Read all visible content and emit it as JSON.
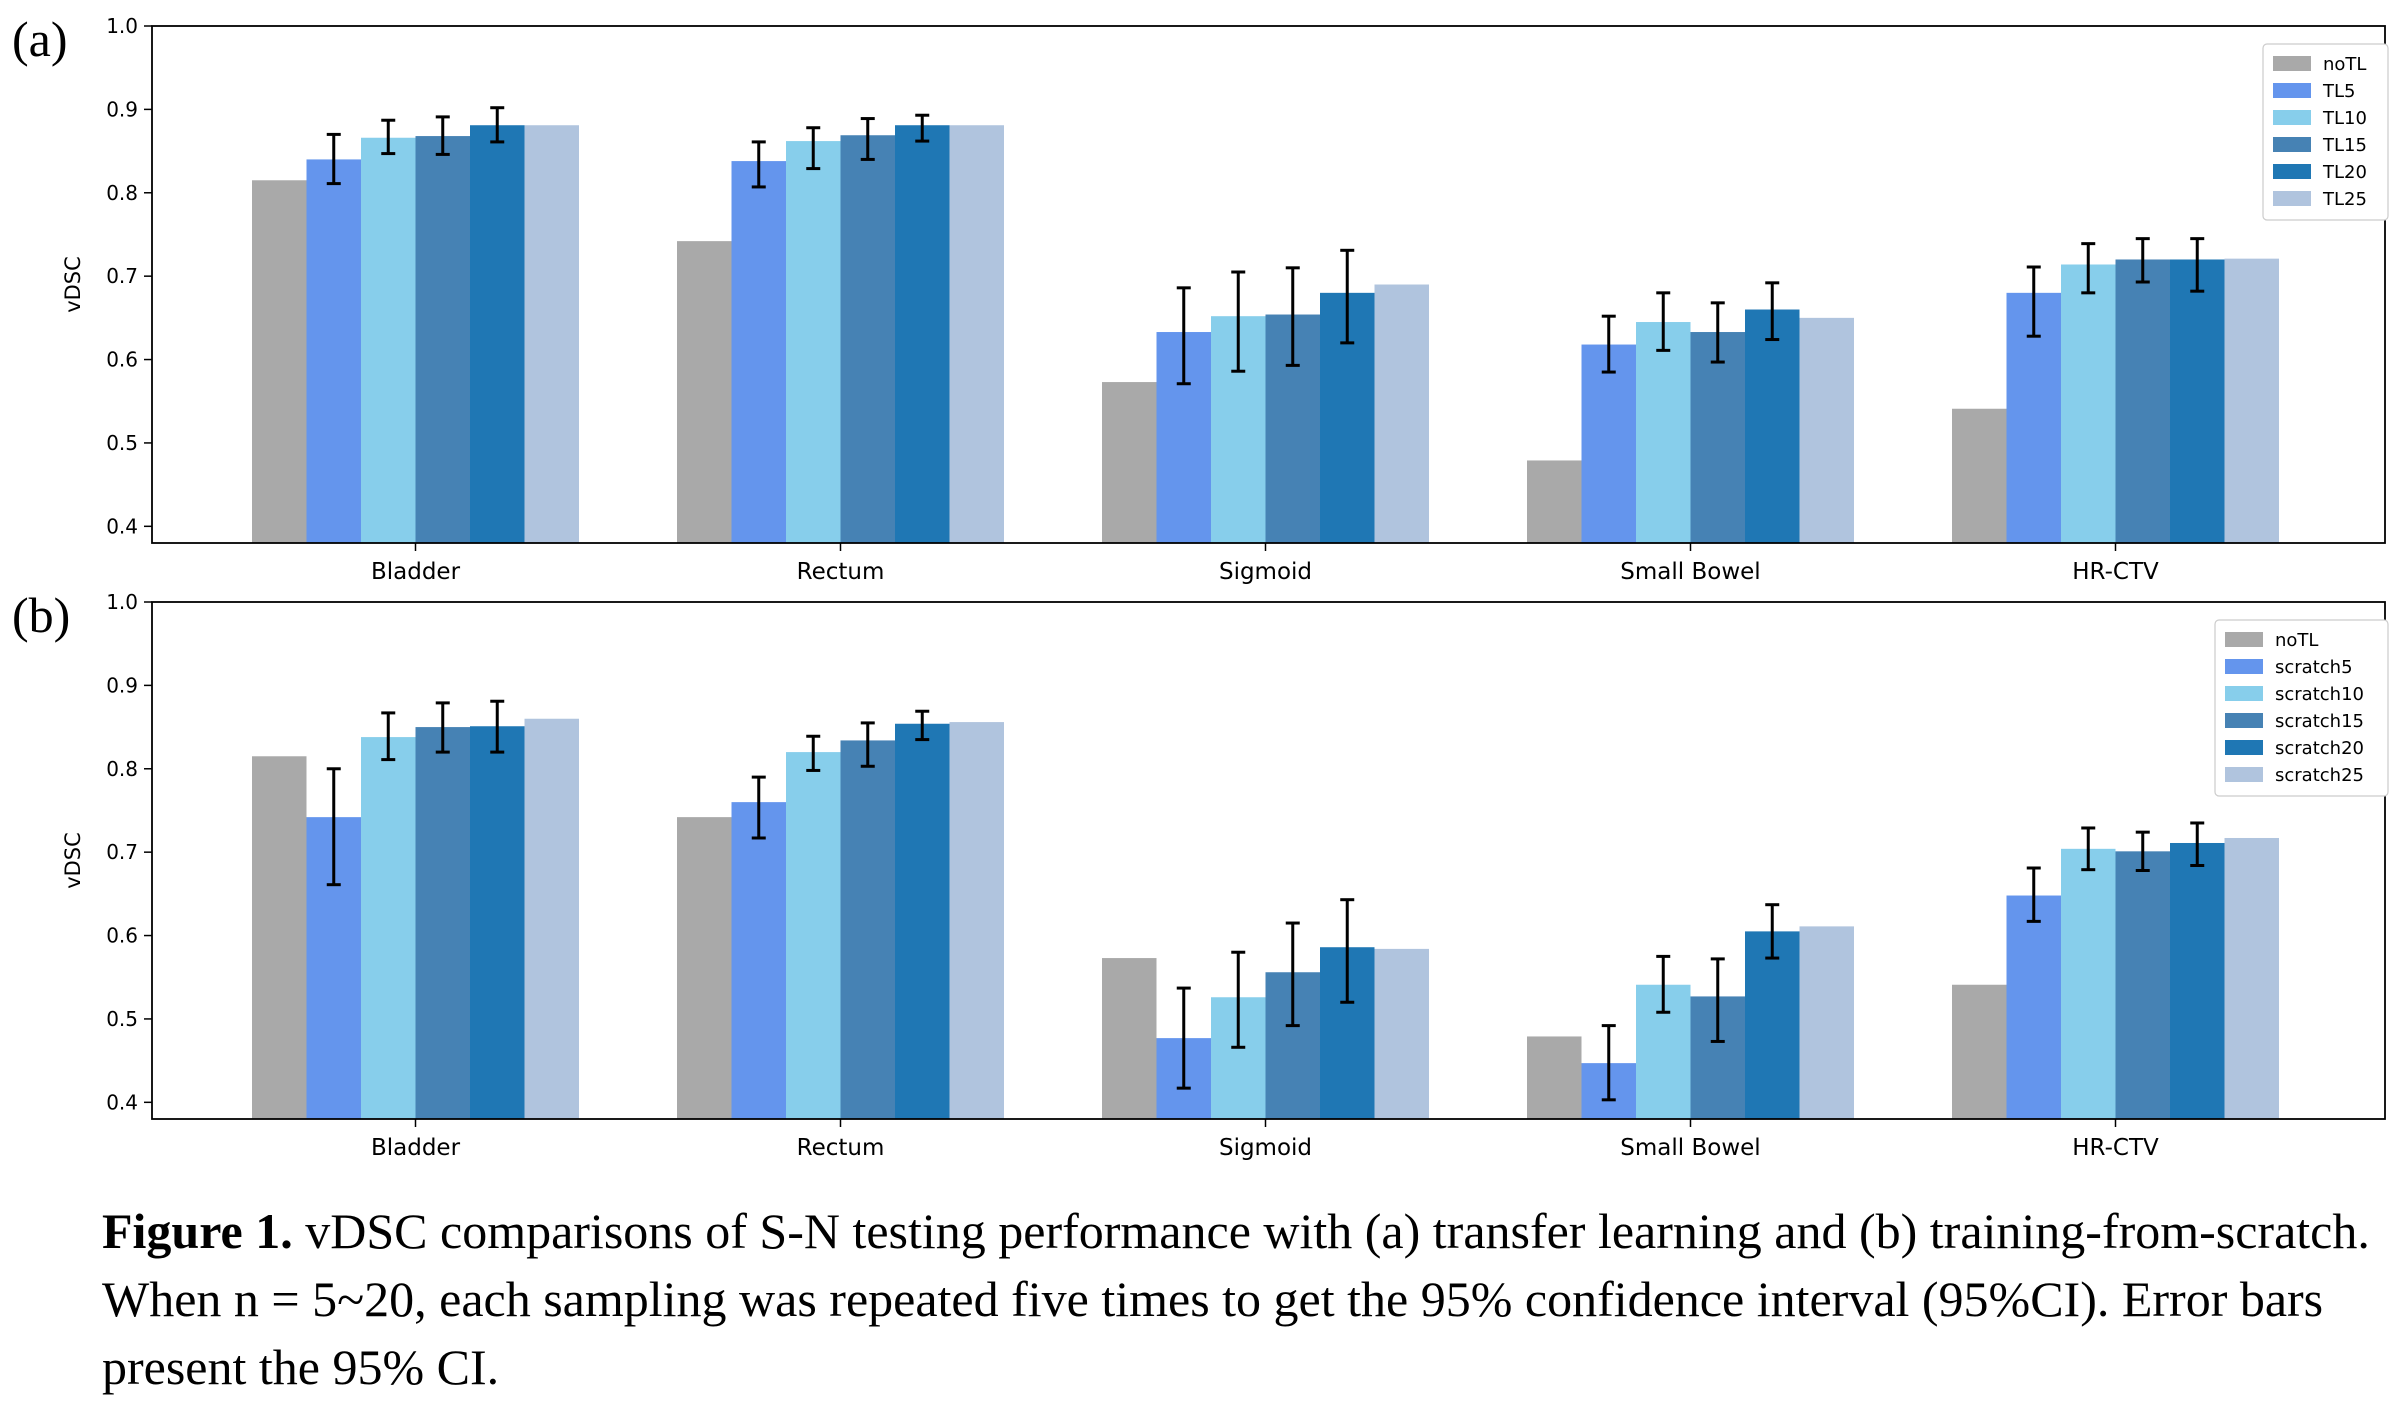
{
  "caption": {
    "label": "Figure 1.",
    "text": "vDSC comparisons of S-N testing performance with (a) transfer learning and (b) training-from-scratch. When n = 5~20, each sampling was repeated five times to get the 95% confidence interval (95%CI). Error bars present the 95% CI."
  },
  "colors": {
    "c0": "#a9a9a9",
    "c1": "#6495ed",
    "c2": "#87ceeb",
    "c3": "#4682b4",
    "c4": "#1f77b4",
    "c5": "#b0c4de"
  },
  "chart_data": [
    {
      "type": "bar",
      "panel_label": "(a)",
      "title": "",
      "xlabel": "",
      "ylabel": "vDSC",
      "ylim": [
        0.38,
        1.0
      ],
      "yticks": [
        "0.4",
        "0.5",
        "0.6",
        "0.7",
        "0.8",
        "0.9",
        "1.0"
      ],
      "categories": [
        "Bladder",
        "Rectum",
        "Sigmoid",
        "Small Bowel",
        "HR-CTV"
      ],
      "legend_position": "top-right",
      "grid": false,
      "series": [
        {
          "name": "noTL",
          "values": [
            0.815,
            0.742,
            0.573,
            0.479,
            0.541
          ],
          "err_low": [
            null,
            null,
            null,
            null,
            null
          ],
          "err_high": [
            null,
            null,
            null,
            null,
            null
          ]
        },
        {
          "name": "TL5",
          "values": [
            0.84,
            0.838,
            0.633,
            0.618,
            0.68
          ],
          "err_low": [
            0.811,
            0.807,
            0.571,
            0.585,
            0.628
          ],
          "err_high": [
            0.87,
            0.861,
            0.686,
            0.652,
            0.711
          ]
        },
        {
          "name": "TL10",
          "values": [
            0.866,
            0.862,
            0.652,
            0.645,
            0.714
          ],
          "err_low": [
            0.847,
            0.829,
            0.586,
            0.611,
            0.68
          ],
          "err_high": [
            0.887,
            0.878,
            0.705,
            0.68,
            0.739
          ]
        },
        {
          "name": "TL15",
          "values": [
            0.868,
            0.869,
            0.654,
            0.633,
            0.72
          ],
          "err_low": [
            0.846,
            0.84,
            0.593,
            0.597,
            0.693
          ],
          "err_high": [
            0.891,
            0.889,
            0.71,
            0.668,
            0.745
          ]
        },
        {
          "name": "TL20",
          "values": [
            0.881,
            0.881,
            0.68,
            0.66,
            0.72
          ],
          "err_low": [
            0.861,
            0.862,
            0.62,
            0.624,
            0.682
          ],
          "err_high": [
            0.902,
            0.893,
            0.731,
            0.692,
            0.745
          ]
        },
        {
          "name": "TL25",
          "values": [
            0.881,
            0.881,
            0.69,
            0.65,
            0.721
          ],
          "err_low": [
            null,
            null,
            null,
            null,
            null
          ],
          "err_high": [
            null,
            null,
            null,
            null,
            null
          ]
        }
      ]
    },
    {
      "type": "bar",
      "panel_label": "(b)",
      "title": "",
      "xlabel": "",
      "ylabel": "vDSC",
      "ylim": [
        0.38,
        1.0
      ],
      "yticks": [
        "0.4",
        "0.5",
        "0.6",
        "0.7",
        "0.8",
        "0.9",
        "1.0"
      ],
      "categories": [
        "Bladder",
        "Rectum",
        "Sigmoid",
        "Small Bowel",
        "HR-CTV"
      ],
      "legend_position": "top-right",
      "grid": false,
      "series": [
        {
          "name": "noTL",
          "values": [
            0.815,
            0.742,
            0.573,
            0.479,
            0.541
          ],
          "err_low": [
            null,
            null,
            null,
            null,
            null
          ],
          "err_high": [
            null,
            null,
            null,
            null,
            null
          ]
        },
        {
          "name": "scratch5",
          "values": [
            0.742,
            0.76,
            0.477,
            0.447,
            0.648
          ],
          "err_low": [
            0.661,
            0.717,
            0.417,
            0.403,
            0.617
          ],
          "err_high": [
            0.8,
            0.79,
            0.537,
            0.492,
            0.681
          ]
        },
        {
          "name": "scratch10",
          "values": [
            0.838,
            0.82,
            0.526,
            0.541,
            0.704
          ],
          "err_low": [
            0.811,
            0.798,
            0.466,
            0.508,
            0.679
          ],
          "err_high": [
            0.867,
            0.839,
            0.58,
            0.575,
            0.729
          ]
        },
        {
          "name": "scratch15",
          "values": [
            0.85,
            0.834,
            0.556,
            0.527,
            0.701
          ],
          "err_low": [
            0.82,
            0.803,
            0.492,
            0.473,
            0.678
          ],
          "err_high": [
            0.879,
            0.855,
            0.615,
            0.572,
            0.724
          ]
        },
        {
          "name": "scratch20",
          "values": [
            0.851,
            0.854,
            0.586,
            0.605,
            0.711
          ],
          "err_low": [
            0.82,
            0.835,
            0.52,
            0.573,
            0.684
          ],
          "err_high": [
            0.881,
            0.869,
            0.643,
            0.637,
            0.735
          ]
        },
        {
          "name": "scratch25",
          "values": [
            0.86,
            0.856,
            0.584,
            0.611,
            0.717
          ],
          "err_low": [
            null,
            null,
            null,
            null,
            null
          ],
          "err_high": [
            null,
            null,
            null,
            null,
            null
          ]
        }
      ]
    }
  ]
}
